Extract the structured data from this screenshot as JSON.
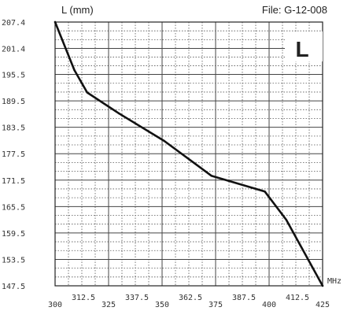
{
  "chart_data": {
    "type": "line",
    "title": "File:  G-12-008",
    "ylabel": "L (mm)",
    "xlabel": "MHz",
    "badge": "L",
    "xlim": [
      300,
      425
    ],
    "ylim": [
      147.5,
      207.4
    ],
    "y_ticks": [
      "207.4",
      "201.4",
      "195.5",
      "189.5",
      "183.5",
      "177.5",
      "171.5",
      "165.5",
      "159.5",
      "153.5",
      "147.5"
    ],
    "x_ticks_lower": [
      "300",
      "325",
      "350",
      "375",
      "400",
      "425"
    ],
    "x_ticks_upper": [
      "312.5",
      "337.5",
      "362.5",
      "387.5",
      "412.5"
    ],
    "grid": true,
    "series": [
      {
        "x": [
          300,
          309,
          315,
          330,
          351,
          373,
          398,
          408,
          425
        ],
        "y": [
          207.4,
          196.5,
          191.4,
          186.6,
          180.4,
          172.5,
          168.9,
          162.5,
          147.5
        ]
      }
    ],
    "colors": {
      "line": "#111111",
      "major_grid": "#444444",
      "minor_grid": "#555555",
      "text": "#333333"
    }
  }
}
